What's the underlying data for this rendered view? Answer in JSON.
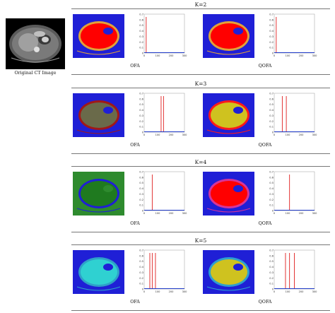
{
  "original": {
    "caption": "Original CT Image"
  },
  "groups": [
    {
      "title": "K=2",
      "left": {
        "label": "OFA",
        "palette": [
          "#ff0000",
          "#e0a13a",
          "#1f1fd6"
        ],
        "peaks": [
          0.05
        ]
      },
      "right": {
        "label": "QOFA",
        "palette": [
          "#ff0000",
          "#e0a13a",
          "#1f1fd6"
        ],
        "peaks": [
          0.05
        ]
      }
    },
    {
      "title": "K=3",
      "left": {
        "label": "OFA",
        "palette": [
          "#6a6a4a",
          "#a01818",
          "#1f1fd6"
        ],
        "peaks": [
          0.42,
          0.48
        ]
      },
      "right": {
        "label": "QOFA",
        "palette": [
          "#cfc21f",
          "#ff1a1a",
          "#1f1fd6"
        ],
        "peaks": [
          0.2,
          0.3
        ]
      }
    },
    {
      "title": "K=4",
      "left": {
        "label": "OFA",
        "palette": [
          "#1f7a1f",
          "#1f1fd6",
          "#2e8b2e"
        ],
        "peaks": [
          0.2
        ]
      },
      "right": {
        "label": "QOFA",
        "palette": [
          "#ff0000",
          "#d6359a",
          "#1f1fd6"
        ],
        "peaks": [
          0.38
        ]
      }
    },
    {
      "title": "K=5",
      "left": {
        "label": "OFA",
        "palette": [
          "#2fd1d1",
          "#2fa0c8",
          "#1f1fd6"
        ],
        "peaks": [
          0.14,
          0.2,
          0.28
        ]
      },
      "right": {
        "label": "QOFA",
        "palette": [
          "#cfc21f",
          "#2e9fcf",
          "#1f1fd6"
        ],
        "peaks": [
          0.28,
          0.38,
          0.5
        ]
      }
    }
  ],
  "hist_axes": {
    "y_ticks": [
      "0.7",
      "0.6",
      "0.5",
      "0.4",
      "0.3",
      "0.2",
      "0.1",
      "0"
    ],
    "x_ticks": [
      "0",
      "100",
      "200",
      "300"
    ],
    "line_color": "#e01e1e",
    "axis_color": "#1f3ac8"
  }
}
